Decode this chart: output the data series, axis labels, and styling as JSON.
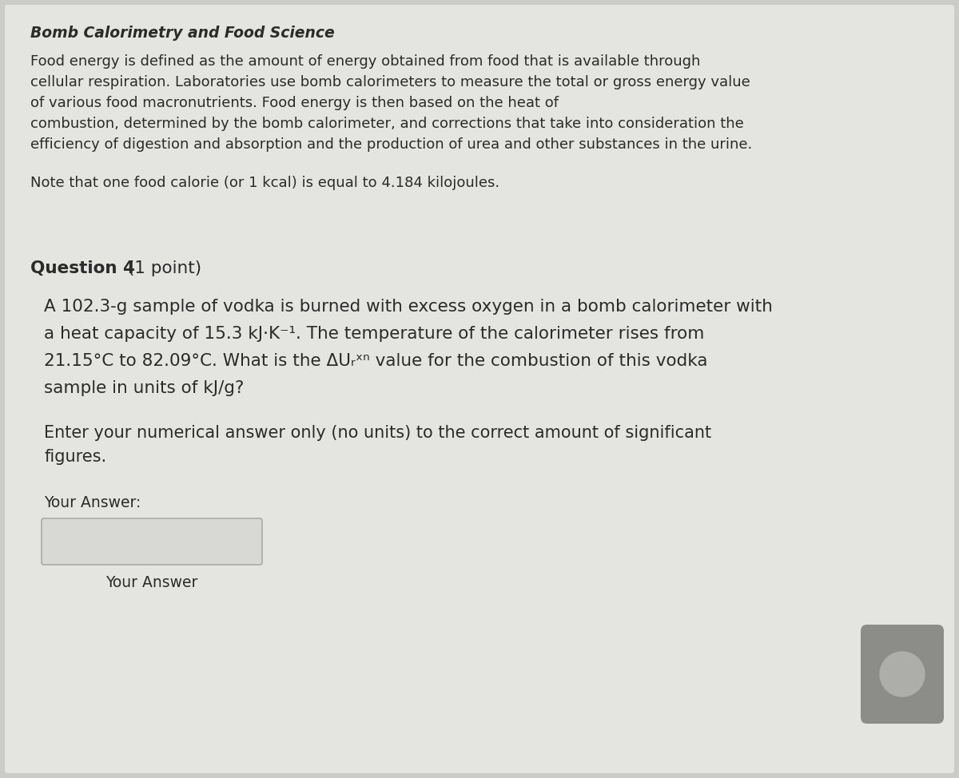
{
  "title": "Bomb Calorimetry and Food Science",
  "bg_color": "#cbcbc7",
  "panel_color": "#e4e4e0",
  "text_color": "#2b2b2b",
  "paragraph1_lines": [
    "Food energy is defined as the amount of energy obtained from food that is available through",
    "cellular respiration. Laboratories use bomb calorimeters to measure the total or gross energy value",
    "of various food macronutrients. Food energy is then based on the heat of",
    "combustion, determined by the bomb calorimeter, and corrections that take into consideration the",
    "efficiency of digestion and absorption and the production of urea and other substances in the urine."
  ],
  "paragraph2": "Note that one food calorie (or 1 kcal) is equal to 4.184 kilojoules.",
  "q_label": "Question 4",
  "q_point": " (1 point)",
  "q_lines": [
    "A 102.3-g sample of vodka is burned with excess oxygen in a bomb calorimeter with",
    "a heat capacity of 15.3 kJ·K⁻¹. The temperature of the calorimeter rises from",
    "21.15°C to 82.09°C. What is the ΔUᵣˣⁿ value for the combustion of this vodka",
    "sample in units of kJ/g?"
  ],
  "inst_lines": [
    "Enter your numerical answer only (no units) to the correct amount of significant",
    "figures."
  ],
  "answer_label": "Your Answer:",
  "answer_footer": "Your Answer",
  "box_color": "#d8d8d4",
  "box_border": "#aaaaaa",
  "widget_color": "#8c8c89",
  "widget_circle": "#adadaa"
}
